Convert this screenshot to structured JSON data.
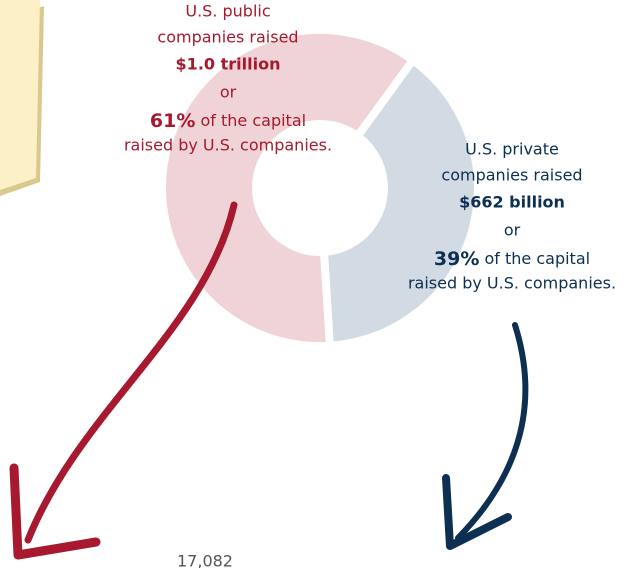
{
  "chart_data": {
    "type": "donut",
    "values": [
      61,
      39
    ],
    "value_labels": [
      "61%",
      "39%"
    ],
    "colors": [
      "#efd3d6",
      "#d2dbe4"
    ],
    "text_colors": [
      "#a6192e",
      "#0d2f52"
    ],
    "annotations": [
      {
        "lines": [
          "U.S. public",
          "companies raised"
        ],
        "amount": "$1.0 trillion",
        "or": "or",
        "suffix": "of the capital",
        "last": "raised by U.S. companies."
      },
      {
        "lines": [
          "U.S. private",
          "companies raised"
        ],
        "amount": "$662 billion",
        "or": "or",
        "suffix": "of the capital",
        "last": "raised by U.S. companies."
      }
    ],
    "footer_text": "17,082"
  }
}
